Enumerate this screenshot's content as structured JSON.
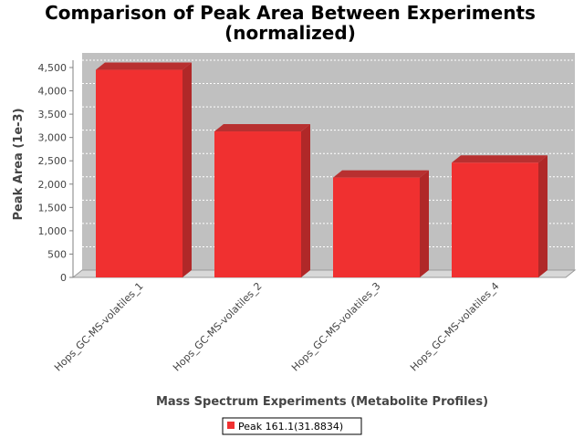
{
  "chart_data": {
    "type": "bar",
    "title": "Comparison of Peak Area Between Experiments",
    "subtitle": "(normalized)",
    "xlabel": "Mass Spectrum Experiments (Metabolite Profiles)",
    "ylabel": "Peak Area (1e-3)",
    "categories": [
      "Hops_GC-MS-volatiles_1",
      "Hops_GC-MS-volatiles_2",
      "Hops_GC-MS-volatiles_3",
      "Hops_GC-MS-volatiles_4"
    ],
    "series": [
      {
        "name": "Peak 161.1(31.8834)",
        "values": [
          4450,
          3130,
          2140,
          2460
        ],
        "color": "#f03030"
      }
    ],
    "ylim": [
      0,
      4500
    ],
    "yticks": [
      "0",
      "500",
      "1,000",
      "1,500",
      "2,000",
      "2,500",
      "3,000",
      "3,500",
      "4,000",
      "4,500"
    ],
    "grid": true,
    "legend_position": "bottom",
    "plot_background": "#c0c0c0"
  }
}
